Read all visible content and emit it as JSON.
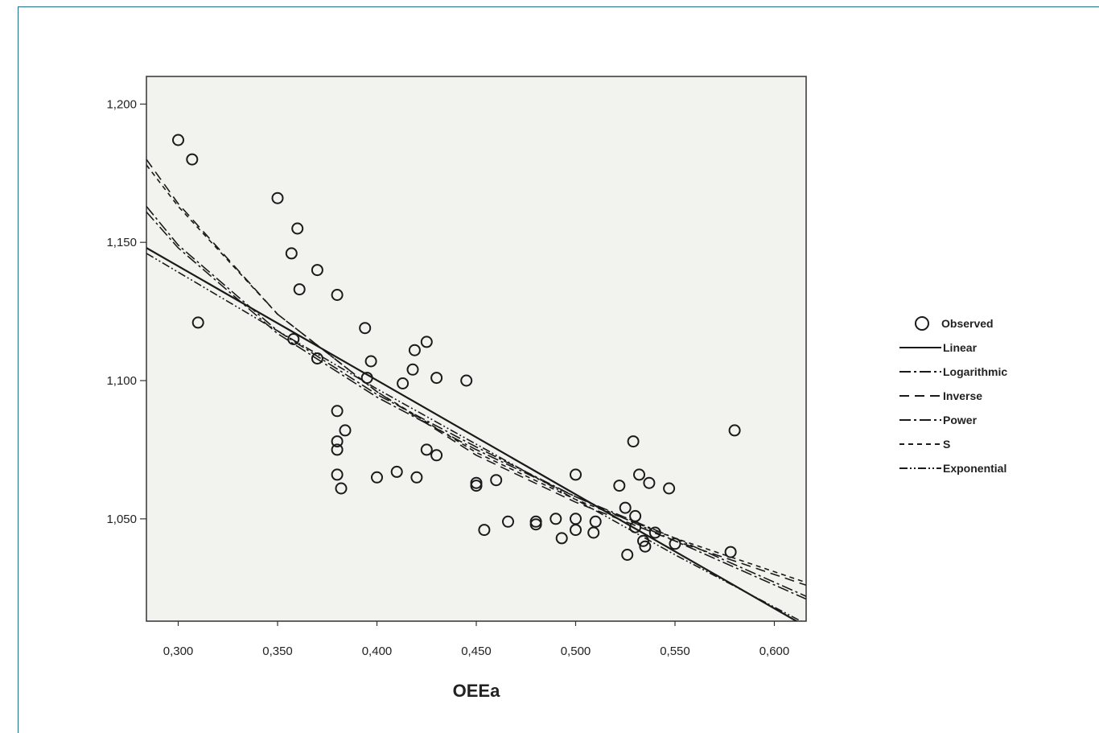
{
  "chart_data": {
    "type": "scatter",
    "title": "",
    "xlabel": "OEEa",
    "ylabel": "",
    "xlim": [
      0.284,
      0.616
    ],
    "ylim": [
      1.013,
      1.21
    ],
    "x_ticks": [
      "0,300",
      "0,350",
      "0,400",
      "0,450",
      "0,500",
      "0,550",
      "0,600"
    ],
    "x_tick_values": [
      0.3,
      0.35,
      0.4,
      0.45,
      0.5,
      0.55,
      0.6
    ],
    "y_ticks": [
      "1,200",
      "1,150",
      "1,100",
      "1,050"
    ],
    "y_tick_values": [
      1.2,
      1.15,
      1.1,
      1.05
    ],
    "grid": false,
    "legend_position": "right",
    "observed": {
      "name": "Observed",
      "points": [
        [
          0.3,
          1.187
        ],
        [
          0.307,
          1.18
        ],
        [
          0.31,
          1.121
        ],
        [
          0.35,
          1.166
        ],
        [
          0.36,
          1.155
        ],
        [
          0.357,
          1.146
        ],
        [
          0.361,
          1.133
        ],
        [
          0.37,
          1.14
        ],
        [
          0.38,
          1.131
        ],
        [
          0.358,
          1.115
        ],
        [
          0.37,
          1.108
        ],
        [
          0.394,
          1.119
        ],
        [
          0.397,
          1.107
        ],
        [
          0.395,
          1.101
        ],
        [
          0.38,
          1.089
        ],
        [
          0.384,
          1.082
        ],
        [
          0.38,
          1.078
        ],
        [
          0.38,
          1.075
        ],
        [
          0.38,
          1.066
        ],
        [
          0.382,
          1.061
        ],
        [
          0.4,
          1.065
        ],
        [
          0.41,
          1.067
        ],
        [
          0.42,
          1.065
        ],
        [
          0.413,
          1.099
        ],
        [
          0.418,
          1.104
        ],
        [
          0.419,
          1.111
        ],
        [
          0.425,
          1.114
        ],
        [
          0.43,
          1.101
        ],
        [
          0.425,
          1.075
        ],
        [
          0.43,
          1.073
        ],
        [
          0.445,
          1.1
        ],
        [
          0.45,
          1.062
        ],
        [
          0.45,
          1.063
        ],
        [
          0.46,
          1.064
        ],
        [
          0.454,
          1.046
        ],
        [
          0.466,
          1.049
        ],
        [
          0.48,
          1.048
        ],
        [
          0.48,
          1.049
        ],
        [
          0.49,
          1.05
        ],
        [
          0.493,
          1.043
        ],
        [
          0.5,
          1.066
        ],
        [
          0.5,
          1.05
        ],
        [
          0.5,
          1.046
        ],
        [
          0.51,
          1.049
        ],
        [
          0.509,
          1.045
        ],
        [
          0.522,
          1.062
        ],
        [
          0.525,
          1.054
        ],
        [
          0.529,
          1.078
        ],
        [
          0.53,
          1.051
        ],
        [
          0.532,
          1.066
        ],
        [
          0.537,
          1.063
        ],
        [
          0.534,
          1.042
        ],
        [
          0.535,
          1.04
        ],
        [
          0.54,
          1.045
        ],
        [
          0.53,
          1.047
        ],
        [
          0.526,
          1.037
        ],
        [
          0.547,
          1.061
        ],
        [
          0.55,
          1.041
        ],
        [
          0.578,
          1.038
        ],
        [
          0.58,
          1.082
        ]
      ]
    },
    "series": [
      {
        "name": "Linear",
        "dash": "",
        "points": [
          [
            0.284,
            1.148
          ],
          [
            0.616,
            1.011
          ]
        ]
      },
      {
        "name": "Logarithmic",
        "dash": "14 4 3 4",
        "points": [
          [
            0.284,
            1.163
          ],
          [
            0.3,
            1.149
          ],
          [
            0.35,
            1.118
          ],
          [
            0.4,
            1.095
          ],
          [
            0.45,
            1.076
          ],
          [
            0.5,
            1.058
          ],
          [
            0.55,
            1.042
          ],
          [
            0.616,
            1.021
          ]
        ]
      },
      {
        "name": "Inverse",
        "dash": "12 7",
        "points": [
          [
            0.284,
            1.18
          ],
          [
            0.3,
            1.164
          ],
          [
            0.35,
            1.124
          ],
          [
            0.4,
            1.096
          ],
          [
            0.45,
            1.073
          ],
          [
            0.5,
            1.056
          ],
          [
            0.55,
            1.042
          ],
          [
            0.616,
            1.026
          ]
        ]
      },
      {
        "name": "Power",
        "dash": "14 4 3 4",
        "points": [
          [
            0.284,
            1.161
          ],
          [
            0.3,
            1.148
          ],
          [
            0.35,
            1.117
          ],
          [
            0.4,
            1.094
          ],
          [
            0.45,
            1.075
          ],
          [
            0.5,
            1.058
          ],
          [
            0.55,
            1.043
          ],
          [
            0.616,
            1.022
          ]
        ]
      },
      {
        "name": "S",
        "dash": "6 5",
        "points": [
          [
            0.284,
            1.178
          ],
          [
            0.3,
            1.163
          ],
          [
            0.35,
            1.124
          ],
          [
            0.4,
            1.096
          ],
          [
            0.45,
            1.074
          ],
          [
            0.5,
            1.057
          ],
          [
            0.55,
            1.043
          ],
          [
            0.616,
            1.027
          ]
        ]
      },
      {
        "name": "Exponential",
        "dash": "10 3 2 3 2 3",
        "points": [
          [
            0.284,
            1.146
          ],
          [
            0.35,
            1.118
          ],
          [
            0.4,
            1.097
          ],
          [
            0.45,
            1.077
          ],
          [
            0.5,
            1.057
          ],
          [
            0.55,
            1.037
          ],
          [
            0.616,
            1.012
          ]
        ]
      }
    ]
  }
}
